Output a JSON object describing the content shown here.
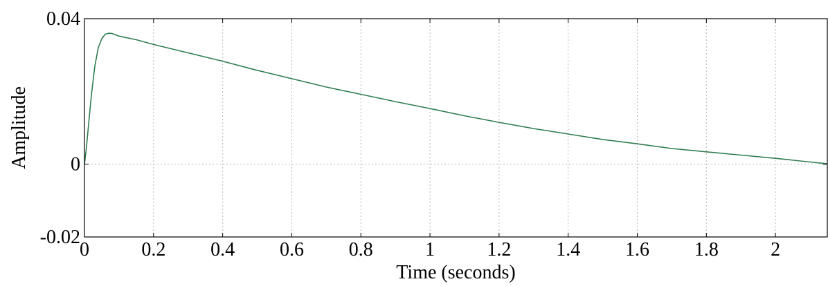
{
  "chart_data": {
    "type": "line",
    "xlabel": "Time (seconds)",
    "ylabel": "Amplitude",
    "xlim": [
      0,
      2.15
    ],
    "ylim": [
      -0.02,
      0.04
    ],
    "grid": true,
    "x_ticks": [
      0,
      0.2,
      0.4,
      0.6,
      0.8,
      1,
      1.2,
      1.4,
      1.6,
      1.8,
      2
    ],
    "x_tick_labels": [
      "0",
      "0.2",
      "0.4",
      "0.6",
      "0.8",
      "1",
      "1.2",
      "1.4",
      "1.6",
      "1.8",
      "2"
    ],
    "y_ticks": [
      -0.02,
      0,
      0.04
    ],
    "y_tick_labels": [
      "-0.02",
      "0",
      "0.04"
    ],
    "colors": {
      "line": "#2e7d4f",
      "grid": "#b8b8b8",
      "axes": "#000000"
    },
    "series": [
      {
        "x": [
          0,
          0.005,
          0.01,
          0.02,
          0.03,
          0.04,
          0.05,
          0.06,
          0.07,
          0.08,
          0.1,
          0.15,
          0.2,
          0.3,
          0.4,
          0.5,
          0.6,
          0.7,
          0.8,
          0.9,
          1.0,
          1.1,
          1.2,
          1.3,
          1.4,
          1.5,
          1.6,
          1.7,
          1.8,
          1.9,
          2.0,
          2.1,
          2.15
        ],
        "y": [
          0,
          0.004,
          0.009,
          0.019,
          0.027,
          0.032,
          0.0345,
          0.0357,
          0.036,
          0.0359,
          0.0352,
          0.0342,
          0.0329,
          0.0306,
          0.0283,
          0.0258,
          0.0235,
          0.0212,
          0.0192,
          0.0172,
          0.0153,
          0.0133,
          0.0115,
          0.0098,
          0.0083,
          0.0068,
          0.0056,
          0.0043,
          0.0034,
          0.0025,
          0.0016,
          0.0006,
          0.0001
        ]
      }
    ]
  }
}
